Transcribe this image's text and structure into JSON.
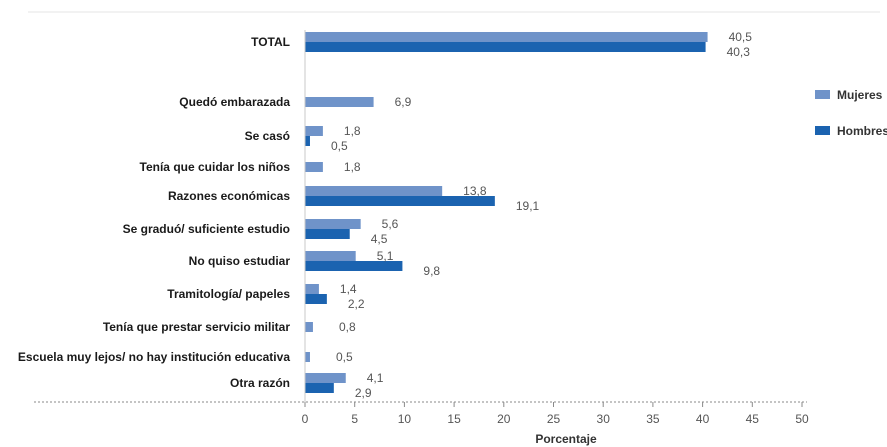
{
  "chart_data": {
    "type": "bar",
    "orientation": "horizontal",
    "categories": [
      "TOTAL",
      "Quedó embarazada",
      "Se casó",
      "Tenía que cuidar los niños",
      "Razones económicas",
      "Se graduó/ suficiente estudio",
      "No quiso estudiar",
      "Tramitología/ papeles",
      "Tenía que prestar servicio militar",
      "Escuela muy lejos/ no hay institución educativa",
      "Otra razón"
    ],
    "series": [
      {
        "name": "Mujeres",
        "color": "#6f93c9",
        "values": [
          40.5,
          6.9,
          1.8,
          1.8,
          13.8,
          5.6,
          5.1,
          1.4,
          null,
          null,
          4.1
        ],
        "labels": [
          "40,5",
          "6,9",
          "1,8",
          "1,8",
          "13,8",
          "5,6",
          "5,1",
          "1,4",
          "",
          "",
          "4,1"
        ]
      },
      {
        "name": "Hombres",
        "color": "#1b63b0",
        "values": [
          40.3,
          null,
          0.5,
          null,
          19.1,
          4.5,
          9.8,
          2.2,
          null,
          null,
          2.9
        ],
        "labels": [
          "40,3",
          "",
          "0,5",
          "",
          "19,1",
          "4,5",
          "9,8",
          "2,2",
          "",
          "",
          "2,9"
        ]
      }
    ],
    "single_values": [
      null,
      null,
      null,
      null,
      null,
      null,
      null,
      null,
      0.8,
      0.5,
      null
    ],
    "single_labels": [
      "",
      "",
      "",
      "",
      "",
      "",
      "",
      "",
      "0,8",
      "0,5",
      ""
    ],
    "xlabel": "Porcentaje",
    "xlim": [
      0,
      50
    ],
    "xticks": [
      0,
      5,
      10,
      15,
      20,
      25,
      30,
      35,
      40,
      45,
      50
    ],
    "grid": false,
    "legend": {
      "position": "right"
    }
  }
}
